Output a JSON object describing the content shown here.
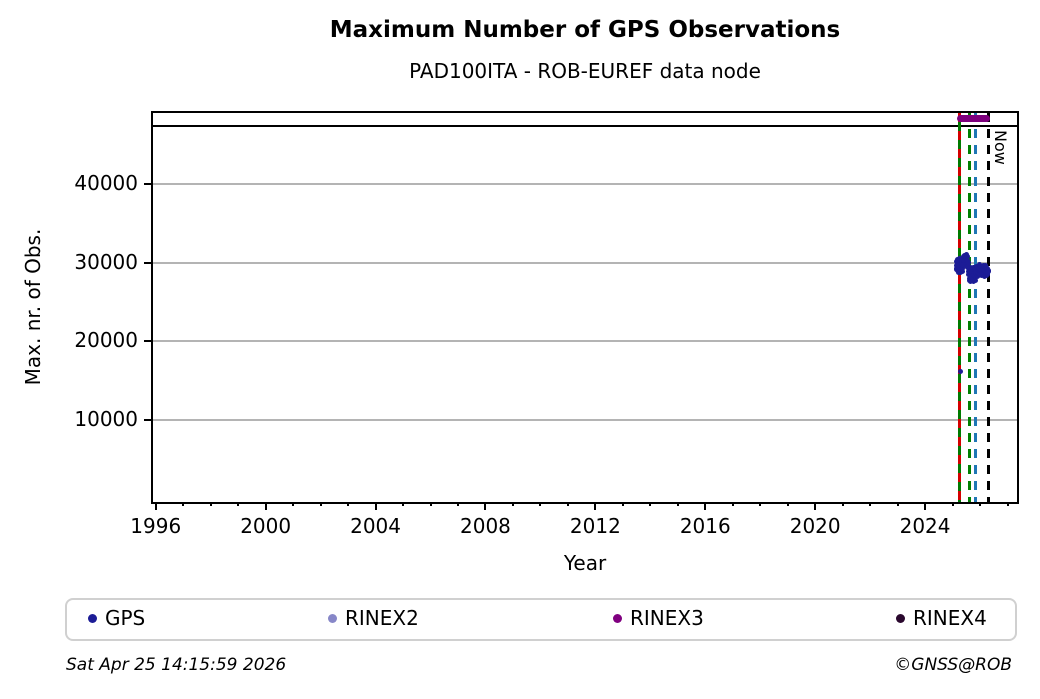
{
  "header": {
    "title": "Maximum Number of GPS Observations",
    "subtitle": "PAD100ITA - ROB-EUREF data node"
  },
  "footer": {
    "timestamp": "Sat Apr 25 14:15:59 2026",
    "credit": "©GNSS@ROB"
  },
  "chart_data": {
    "type": "scatter",
    "title": "Maximum Number of GPS Observations",
    "subtitle": "PAD100ITA - ROB-EUREF data node",
    "xlabel": "Year",
    "ylabel": "Max. nr. of Obs.",
    "xlim": [
      1995.9,
      2027.2
    ],
    "ylim": [
      0,
      49100
    ],
    "xticks": [
      1996,
      2000,
      2004,
      2008,
      2012,
      2016,
      2020,
      2024
    ],
    "minor_xticks": {
      "from": 1996,
      "to": 2027,
      "step": 1
    },
    "yticks": [
      10000,
      20000,
      30000,
      40000
    ],
    "grid": "horizontal-major-only",
    "grid_color": "#b4b4b4",
    "hline": {
      "value": 47500,
      "color": "#000000"
    },
    "vlines": [
      {
        "x": 2025.25,
        "style": "alternating-dash",
        "colors": [
          "#d40000",
          "#007a00"
        ]
      },
      {
        "x": 2025.63,
        "style": "dashed",
        "colors": [
          "#008000"
        ]
      },
      {
        "x": 2025.85,
        "style": "dashed",
        "colors": [
          "#1f77b4"
        ]
      },
      {
        "x": 2026.31,
        "style": "dashed",
        "colors": [
          "#000000"
        ],
        "label": "Now"
      }
    ],
    "now_label": "Now",
    "rinex3_band": {
      "x_start": 2025.17,
      "x_end": 2026.35,
      "value": 48400,
      "color": "#7d007d"
    },
    "legend": {
      "position": "bottom",
      "entries": [
        {
          "label": "GPS",
          "color": "#1c1c96"
        },
        {
          "label": "RINEX2",
          "color": "#8787c8"
        },
        {
          "label": "RINEX3",
          "color": "#800080"
        },
        {
          "label": "RINEX4",
          "color": "#2a082e"
        }
      ]
    },
    "gps_color": "#1c1c96",
    "gps_outlier": [
      2025.3,
      16100
    ],
    "gps_points": [
      [
        2025.13,
        29600
      ],
      [
        2025.13,
        29100
      ],
      [
        2025.15,
        30100
      ],
      [
        2025.15,
        29300
      ],
      [
        2025.17,
        30400
      ],
      [
        2025.17,
        29000
      ],
      [
        2025.19,
        29700
      ],
      [
        2025.19,
        30250
      ],
      [
        2025.21,
        29450
      ],
      [
        2025.21,
        28750
      ],
      [
        2025.23,
        30150
      ],
      [
        2025.23,
        29550
      ],
      [
        2025.25,
        30500
      ],
      [
        2025.25,
        28950
      ],
      [
        2025.27,
        30300
      ],
      [
        2025.27,
        29350
      ],
      [
        2025.29,
        29650
      ],
      [
        2025.29,
        28800
      ],
      [
        2025.31,
        30100
      ],
      [
        2025.31,
        29500
      ],
      [
        2025.33,
        29850
      ],
      [
        2025.33,
        30350
      ],
      [
        2025.35,
        29250
      ],
      [
        2025.35,
        28850
      ],
      [
        2025.37,
        30450
      ],
      [
        2025.37,
        29700
      ],
      [
        2025.39,
        30650
      ],
      [
        2025.39,
        29950
      ],
      [
        2025.41,
        30850
      ],
      [
        2025.41,
        30250
      ],
      [
        2025.43,
        30500
      ],
      [
        2025.43,
        29600
      ],
      [
        2025.45,
        30950
      ],
      [
        2025.45,
        30300
      ],
      [
        2025.47,
        30700
      ],
      [
        2025.47,
        29850
      ],
      [
        2025.49,
        31000
      ],
      [
        2025.49,
        30150
      ],
      [
        2025.51,
        30600
      ],
      [
        2025.51,
        29750
      ],
      [
        2025.53,
        30850
      ],
      [
        2025.53,
        30050
      ],
      [
        2025.55,
        30350
      ],
      [
        2025.55,
        29450
      ],
      [
        2025.57,
        30050
      ],
      [
        2025.57,
        28900
      ],
      [
        2025.59,
        29550
      ],
      [
        2025.59,
        28450
      ],
      [
        2025.61,
        29150
      ],
      [
        2025.61,
        27950
      ],
      [
        2025.63,
        28850
      ],
      [
        2025.63,
        27700
      ],
      [
        2025.65,
        29350
      ],
      [
        2025.65,
        28150
      ],
      [
        2025.67,
        28750
      ],
      [
        2025.67,
        27600
      ],
      [
        2025.69,
        29050
      ],
      [
        2025.69,
        28300
      ],
      [
        2025.71,
        28650
      ],
      [
        2025.71,
        27850
      ],
      [
        2025.73,
        29250
      ],
      [
        2025.73,
        28050
      ],
      [
        2025.75,
        28850
      ],
      [
        2025.75,
        27550
      ],
      [
        2025.77,
        29450
      ],
      [
        2025.77,
        28350
      ],
      [
        2025.79,
        28950
      ],
      [
        2025.79,
        28100
      ],
      [
        2025.81,
        29350
      ],
      [
        2025.81,
        27900
      ],
      [
        2025.83,
        28800
      ],
      [
        2025.83,
        28250
      ],
      [
        2025.85,
        29150
      ],
      [
        2025.85,
        27700
      ],
      [
        2025.87,
        29550
      ],
      [
        2025.87,
        28500
      ],
      [
        2025.89,
        29100
      ],
      [
        2025.89,
        28200
      ],
      [
        2025.91,
        29450
      ],
      [
        2025.91,
        28750
      ],
      [
        2025.93,
        28950
      ],
      [
        2025.93,
        28350
      ],
      [
        2025.95,
        29350
      ],
      [
        2025.95,
        28650
      ],
      [
        2025.97,
        29750
      ],
      [
        2025.97,
        29050
      ],
      [
        2025.99,
        29250
      ],
      [
        2025.99,
        28550
      ],
      [
        2026.01,
        29550
      ],
      [
        2026.01,
        28850
      ],
      [
        2026.03,
        29150
      ],
      [
        2026.03,
        28450
      ],
      [
        2026.05,
        29450
      ],
      [
        2026.05,
        28750
      ],
      [
        2026.07,
        28950
      ],
      [
        2026.07,
        28350
      ],
      [
        2026.09,
        29350
      ],
      [
        2026.09,
        28650
      ],
      [
        2026.11,
        29650
      ],
      [
        2026.11,
        28950
      ],
      [
        2026.13,
        29150
      ],
      [
        2026.13,
        28450
      ],
      [
        2026.15,
        29450
      ],
      [
        2026.15,
        28750
      ],
      [
        2026.17,
        28950
      ],
      [
        2026.17,
        28250
      ],
      [
        2026.19,
        29350
      ],
      [
        2026.19,
        28650
      ],
      [
        2026.21,
        29650
      ],
      [
        2026.21,
        28850
      ],
      [
        2026.23,
        29150
      ],
      [
        2026.23,
        28350
      ],
      [
        2026.25,
        29450
      ],
      [
        2026.25,
        28750
      ],
      [
        2026.27,
        29050
      ],
      [
        2026.27,
        28450
      ],
      [
        2026.29,
        29300
      ],
      [
        2026.29,
        28650
      ],
      [
        2026.3,
        29000
      ],
      [
        2026.3,
        28900
      ]
    ]
  }
}
